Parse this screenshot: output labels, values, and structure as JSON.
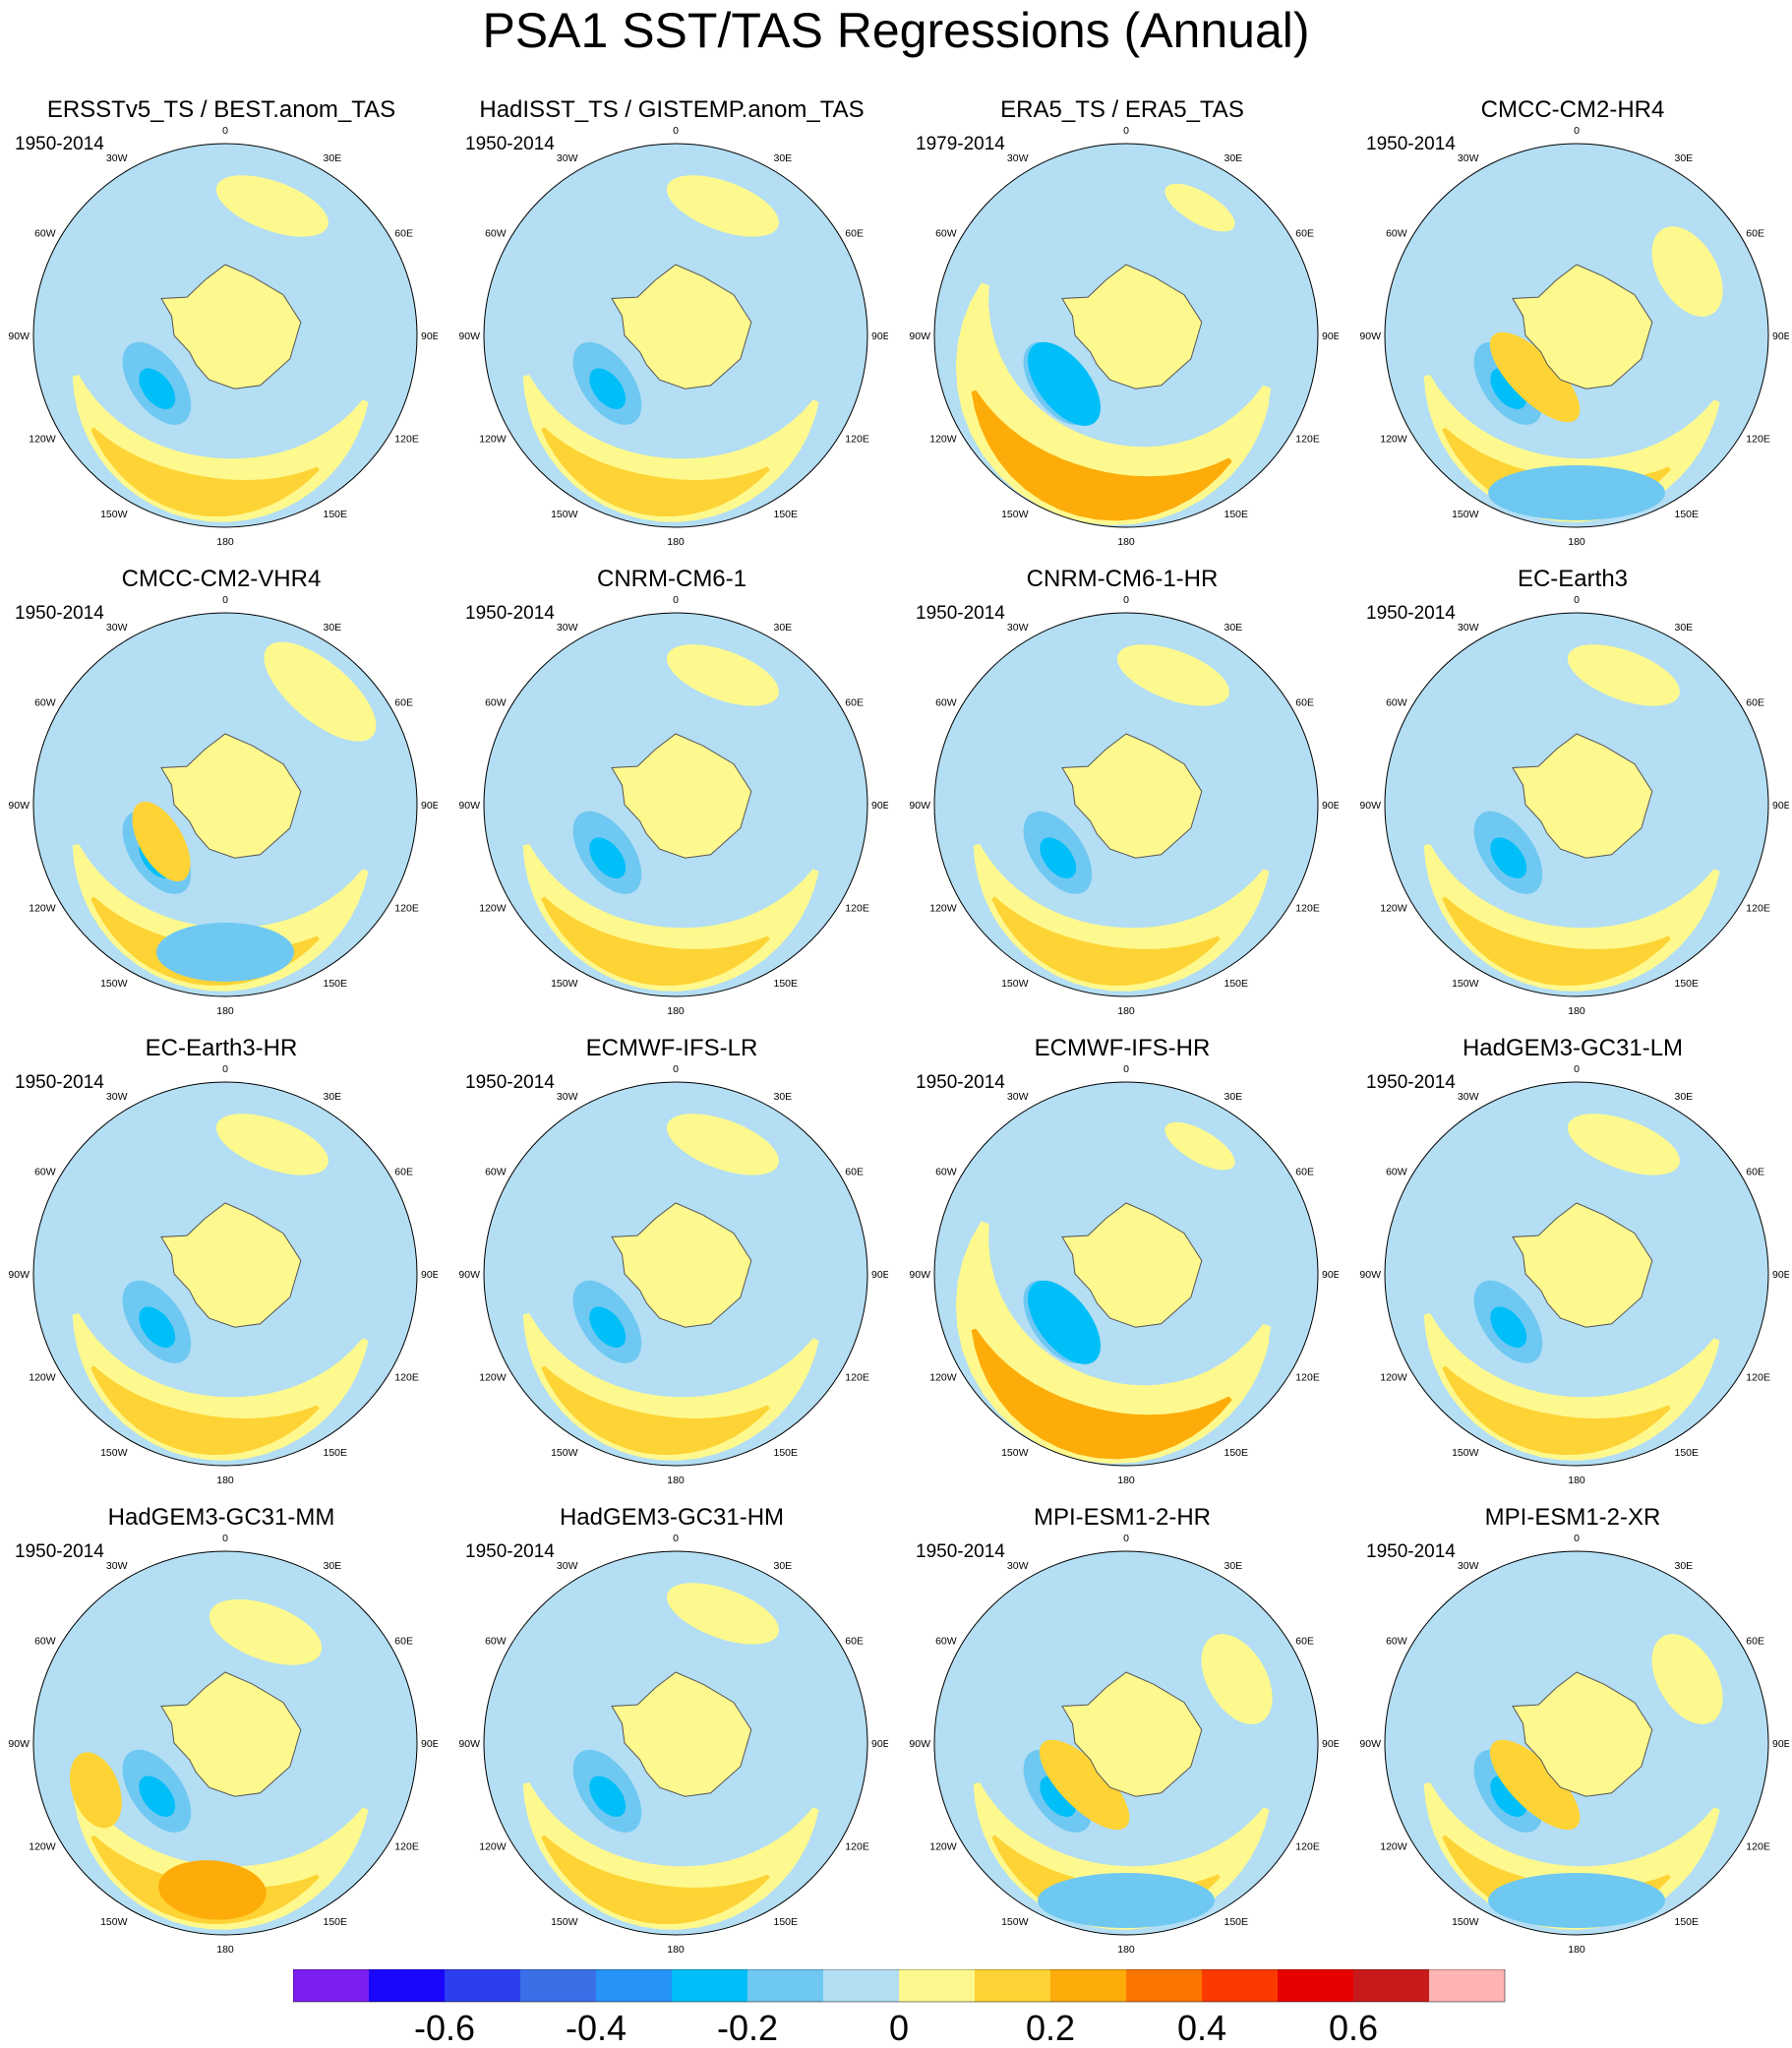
{
  "title": "PSA1 SST/TAS Regressions (Annual)",
  "longitude_labels": [
    "0",
    "30E",
    "60E",
    "90E",
    "120E",
    "150E",
    "180",
    "150W",
    "120W",
    "90W",
    "60W",
    "30W"
  ],
  "panels": [
    {
      "name": "ERSSTv5_TS / BEST.anom_TAS",
      "period": "1950-2014",
      "pattern": 1
    },
    {
      "name": "HadISST_TS / GISTEMP.anom_TAS",
      "period": "1950-2014",
      "pattern": 1
    },
    {
      "name": "ERA5_TS / ERA5_TAS",
      "period": "1979-2014",
      "pattern": 2
    },
    {
      "name": "CMCC-CM2-HR4",
      "period": "1950-2014",
      "pattern": 3
    },
    {
      "name": "CMCC-CM2-VHR4",
      "period": "1950-2014",
      "pattern": 4
    },
    {
      "name": "CNRM-CM6-1",
      "period": "1950-2014",
      "pattern": 1
    },
    {
      "name": "CNRM-CM6-1-HR",
      "period": "1950-2014",
      "pattern": 1
    },
    {
      "name": "EC-Earth3",
      "period": "1950-2014",
      "pattern": 1
    },
    {
      "name": "EC-Earth3-HR",
      "period": "1950-2014",
      "pattern": 1
    },
    {
      "name": "ECMWF-IFS-LR",
      "period": "1950-2014",
      "pattern": 1
    },
    {
      "name": "ECMWF-IFS-HR",
      "period": "1950-2014",
      "pattern": 2
    },
    {
      "name": "HadGEM3-GC31-LM",
      "period": "1950-2014",
      "pattern": 1
    },
    {
      "name": "HadGEM3-GC31-MM",
      "period": "1950-2014",
      "pattern": 5
    },
    {
      "name": "HadGEM3-GC31-HM",
      "period": "1950-2014",
      "pattern": 1
    },
    {
      "name": "MPI-ESM1-2-HR",
      "period": "1950-2014",
      "pattern": 3
    },
    {
      "name": "MPI-ESM1-2-XR",
      "period": "1950-2014",
      "pattern": 3
    }
  ],
  "colorbar": {
    "colors": [
      "#7b1ff0",
      "#1a06fb",
      "#2d3ef0",
      "#3a6fe8",
      "#2792f8",
      "#00bff8",
      "#6fc8f2",
      "#b3def3",
      "#fef98f",
      "#fed335",
      "#fdac0a",
      "#fb7601",
      "#fb3a00",
      "#e70000",
      "#c81a1a",
      "#ffb3b3"
    ],
    "labels": [
      {
        "text": "-0.6",
        "boundary": 2
      },
      {
        "text": "-0.4",
        "boundary": 4
      },
      {
        "text": "-0.2",
        "boundary": 6
      },
      {
        "text": "0",
        "boundary": 8
      },
      {
        "text": "0.2",
        "boundary": 10
      },
      {
        "text": "0.4",
        "boundary": 12
      },
      {
        "text": "0.6",
        "boundary": 14
      }
    ]
  }
}
